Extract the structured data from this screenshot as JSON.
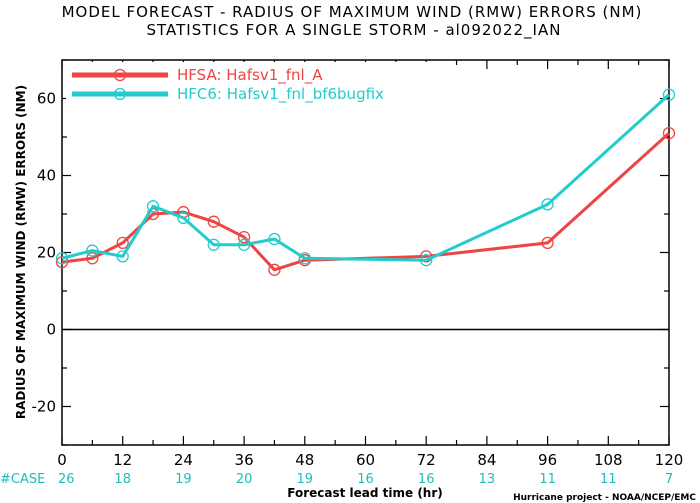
{
  "chart_data": {
    "type": "line",
    "title": "MODEL FORECAST - RADIUS OF MAXIMUM WIND (RMW) ERRORS (NM)",
    "subtitle": "STATISTICS FOR A SINGLE STORM - al092022_IAN",
    "xlabel": "Forecast lead time (hr)",
    "ylabel": "RADIUS OF MAXIMUM WIND (RMW) ERRORS (NM)",
    "xlim": [
      0,
      120
    ],
    "ylim": [
      -30,
      70
    ],
    "xticks": [
      "0",
      "12",
      "24",
      "36",
      "48",
      "60",
      "72",
      "84",
      "96",
      "108",
      "120"
    ],
    "yticks": [
      "60",
      "40",
      "20",
      "0",
      "-20"
    ],
    "grid": false,
    "zero_line": true,
    "legend_position": "top-left",
    "case_label": "#CASE",
    "case_hours": [
      0,
      12,
      24,
      36,
      48,
      60,
      72,
      84,
      96,
      108,
      120
    ],
    "case_counts": [
      "26",
      "18",
      "19",
      "20",
      "19",
      "16",
      "16",
      "13",
      "11",
      "11",
      "7"
    ],
    "series": [
      {
        "name": "HFSA: Hafsv1_fnl_A",
        "color": "#ee4444",
        "x": [
          0,
          6,
          12,
          18,
          24,
          30,
          36,
          42,
          48,
          72,
          96,
          120
        ],
        "y": [
          17.5,
          18.5,
          22.5,
          30,
          30.5,
          28,
          24,
          15.5,
          18,
          19,
          22.5,
          51
        ]
      },
      {
        "name": "HFC6: Hafsv1_fnl_bf6bugfix",
        "color": "#22cccc",
        "x": [
          0,
          6,
          12,
          18,
          24,
          30,
          36,
          42,
          48,
          72,
          96,
          120
        ],
        "y": [
          18.5,
          20.5,
          19,
          32,
          29,
          22,
          22,
          23.5,
          18.5,
          18,
          32.5,
          61
        ]
      }
    ],
    "credit": "Hurricane project - NOAA/NCEP/EMC"
  }
}
